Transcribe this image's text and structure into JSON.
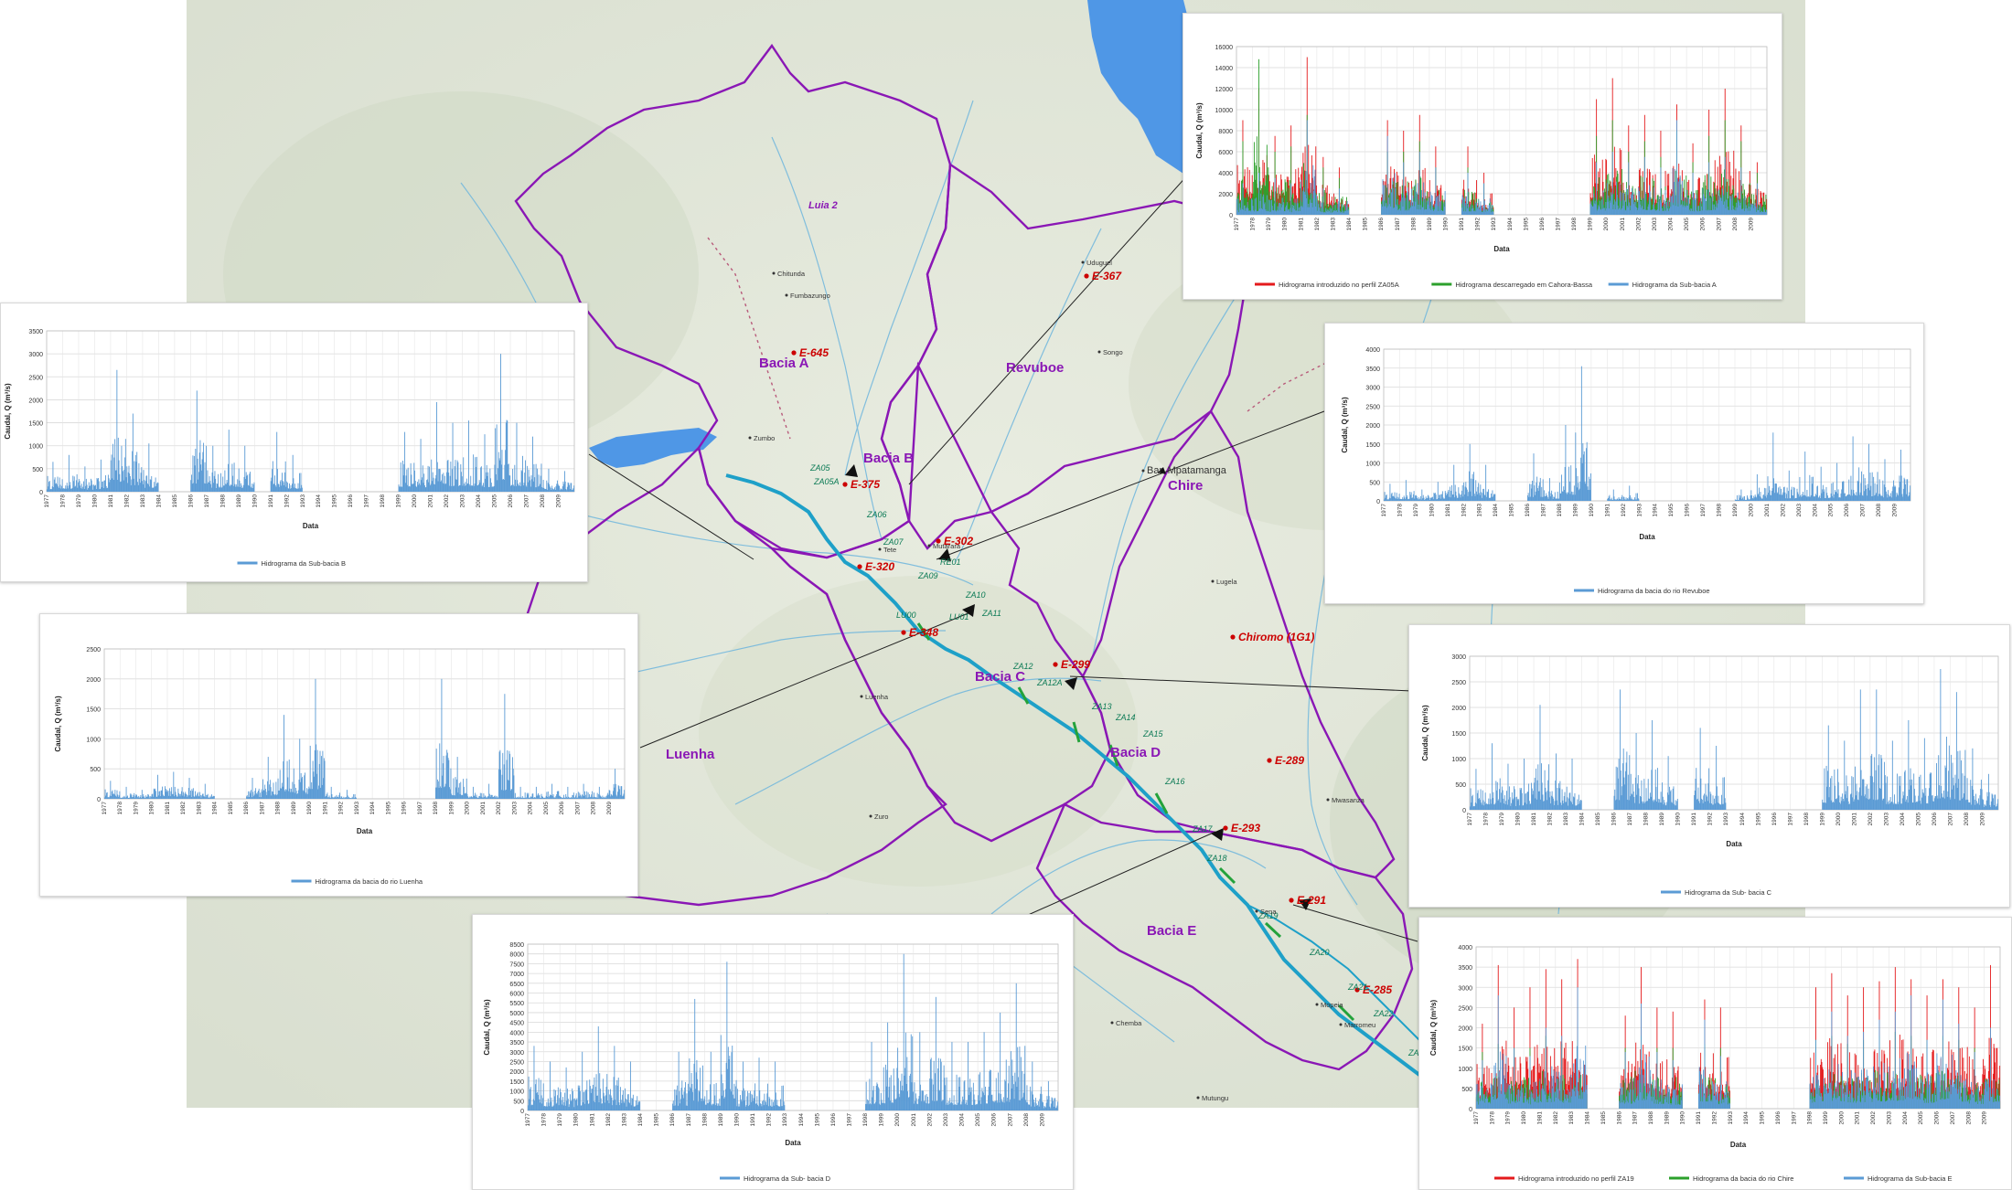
{
  "map": {
    "basin_labels": [
      "Bacia A",
      "Bacia B",
      "Bacia C",
      "Bacia D",
      "Bacia E",
      "Revuboe",
      "Luenha",
      "Chire"
    ],
    "station_labels": [
      "E-645",
      "E-367",
      "E-375",
      "E-302",
      "E-320",
      "E-348",
      "E-299",
      "E-289",
      "E-293",
      "E-291",
      "E-285",
      "Chiromo (1G1)"
    ],
    "reach_labels": [
      "ZA05",
      "ZA05A",
      "ZA06",
      "ZA07",
      "RE01",
      "ZA09",
      "ZA10",
      "ZA11",
      "LU00",
      "LU01",
      "ZA12",
      "ZA12A",
      "ZA13",
      "ZA14",
      "ZA15",
      "ZA16",
      "ZA17",
      "ZA18",
      "ZA19",
      "ZA20",
      "ZA21",
      "ZA22",
      "ZA"
    ],
    "place_labels": [
      "Luia 2",
      "Bar. Mpatamanga",
      "Tete",
      "Chitunda",
      "Fumbazungo",
      "Mutarara",
      "Uduguel",
      "Luenha",
      "Zumbo",
      "Sena",
      "Chemba",
      "Mwasanza",
      "Mopeia",
      "Songo",
      "Zuro",
      "Marromeu",
      "Lugela",
      "Mutungu"
    ],
    "colors": {
      "basin_border": "#8a17b5",
      "river": "#2f9fd2",
      "main_river": "#1ea0c8",
      "station": "#cc0000",
      "reach_label": "#0b7a55",
      "lake": "#4f97e6"
    }
  },
  "chart_data": [
    {
      "id": "top-right",
      "type": "area",
      "title": "",
      "xlabel": "Data",
      "ylabel": "Caudal, Q (m³/s)",
      "ylim": [
        0,
        16000
      ],
      "yticks": [
        0,
        2000,
        4000,
        6000,
        8000,
        10000,
        12000,
        14000,
        16000
      ],
      "x": [
        "1977",
        "1978",
        "1979",
        "1980",
        "1981",
        "1982",
        "1983",
        "1984",
        "1985",
        "1986",
        "1987",
        "1988",
        "1989",
        "1990",
        "1991",
        "1992",
        "1993",
        "1994",
        "1995",
        "1996",
        "1997",
        "1998",
        "1999",
        "2000",
        "2001",
        "2002",
        "2003",
        "2004",
        "2005",
        "2006",
        "2007",
        "2008",
        "2009"
      ],
      "series": [
        {
          "name": "Hidrograma introduzido no perfil ZA05A",
          "color": "#e41a1c",
          "values": [
            9000,
            12000,
            7500,
            8500,
            15000,
            5500,
            4500,
            null,
            null,
            9000,
            8000,
            9500,
            6500,
            null,
            6500,
            4000,
            null,
            null,
            null,
            null,
            null,
            null,
            11000,
            13000,
            8500,
            9500,
            8000,
            10500,
            6800,
            10000,
            12000,
            8500,
            5000
          ]
        },
        {
          "name": "Hidrograma descarregado em Cahora-Bassa",
          "color": "#2ca02c",
          "values": [
            7000,
            14800,
            6000,
            6500,
            9500,
            4500,
            3500,
            null,
            null,
            6000,
            6000,
            7000,
            4500,
            null,
            4500,
            3000,
            null,
            null,
            null,
            null,
            null,
            null,
            7500,
            9000,
            6000,
            7000,
            5500,
            8000,
            5000,
            7500,
            9000,
            7000,
            4000
          ]
        },
        {
          "name": "Hidrograma da Sub-bacia A",
          "color": "#5b9bd5",
          "values": [
            3000,
            4000,
            3500,
            3000,
            9000,
            2500,
            2500,
            null,
            null,
            7500,
            5000,
            6000,
            4500,
            null,
            4000,
            3000,
            null,
            null,
            null,
            null,
            null,
            null,
            5000,
            6000,
            5000,
            5500,
            4500,
            9000,
            4000,
            5000,
            5500,
            4500,
            3000
          ]
        }
      ]
    },
    {
      "id": "left-top",
      "type": "area",
      "title": "",
      "xlabel": "Data",
      "ylabel": "Caudal, Q (m³/s)",
      "ylim": [
        0,
        3500
      ],
      "yticks": [
        0,
        500,
        1000,
        1500,
        2000,
        2500,
        3000,
        3500
      ],
      "x": [
        "1977",
        "1978",
        "1979",
        "1980",
        "1981",
        "1982",
        "1983",
        "1984",
        "1985",
        "1986",
        "1987",
        "1988",
        "1989",
        "1990",
        "1991",
        "1992",
        "1993",
        "1994",
        "1995",
        "1996",
        "1997",
        "1998",
        "1999",
        "2000",
        "2001",
        "2002",
        "2003",
        "2004",
        "2005",
        "2006",
        "2007",
        "2008",
        "2009"
      ],
      "series": [
        {
          "name": "Hidrograma da Sub-bacia B",
          "color": "#5b9bd5",
          "values": [
            650,
            800,
            550,
            700,
            2650,
            1700,
            1050,
            null,
            null,
            2200,
            1000,
            1350,
            1000,
            null,
            1300,
            800,
            null,
            null,
            null,
            null,
            null,
            null,
            1300,
            1150,
            1950,
            1500,
            1550,
            1250,
            3000,
            1500,
            1200,
            500,
            450
          ]
        }
      ]
    },
    {
      "id": "right-top",
      "type": "area",
      "title": "",
      "xlabel": "Data",
      "ylabel": "Caudal, Q (m³/s)",
      "ylim": [
        0,
        4000
      ],
      "yticks": [
        0,
        500,
        1000,
        1500,
        2000,
        2500,
        3000,
        3500,
        4000
      ],
      "x": [
        "1977",
        "1978",
        "1979",
        "1980",
        "1981",
        "1982",
        "1983",
        "1984",
        "1985",
        "1986",
        "1987",
        "1988",
        "1989",
        "1990",
        "1991",
        "1992",
        "1993",
        "1994",
        "1995",
        "1996",
        "1997",
        "1998",
        "1999",
        "2000",
        "2001",
        "2002",
        "2003",
        "2004",
        "2005",
        "2006",
        "2007",
        "2008",
        "2009"
      ],
      "series": [
        {
          "name": "Hidrograma da bacia do rio Revuboe",
          "color": "#5b9bd5",
          "values": [
            450,
            550,
            300,
            500,
            950,
            1500,
            950,
            null,
            null,
            1250,
            600,
            2000,
            3550,
            null,
            300,
            400,
            null,
            null,
            null,
            null,
            null,
            null,
            300,
            700,
            1800,
            800,
            1300,
            900,
            1000,
            1700,
            1500,
            1100,
            1350
          ]
        }
      ]
    },
    {
      "id": "left-mid",
      "type": "area",
      "title": "",
      "xlabel": "Data",
      "ylabel": "Caudal, Q (m³/s)",
      "ylim": [
        0,
        2500
      ],
      "yticks": [
        0,
        500,
        1000,
        1500,
        2000,
        2500
      ],
      "x": [
        "1977",
        "1978",
        "1979",
        "1980",
        "1981",
        "1982",
        "1983",
        "1984",
        "1985",
        "1986",
        "1987",
        "1988",
        "1989",
        "1990",
        "1991",
        "1992",
        "1993",
        "1994",
        "1995",
        "1996",
        "1997",
        "1998",
        "1999",
        "2000",
        "2001",
        "2002",
        "2003",
        "2004",
        "2005",
        "2006",
        "2007",
        "2008",
        "2009"
      ],
      "series": [
        {
          "name": "Hidrograma da bacia do rio Luenha",
          "color": "#5b9bd5",
          "values": [
            300,
            200,
            150,
            400,
            450,
            350,
            250,
            null,
            null,
            350,
            700,
            1400,
            1000,
            2000,
            200,
            150,
            null,
            null,
            null,
            null,
            null,
            2000,
            700,
            200,
            250,
            1750,
            200,
            200,
            250,
            200,
            250,
            200,
            500
          ]
        }
      ]
    },
    {
      "id": "right-mid",
      "type": "area",
      "title": "",
      "xlabel": "Data",
      "ylabel": "Caudal, Q (m³/s)",
      "ylim": [
        0,
        3000
      ],
      "yticks": [
        0,
        500,
        1000,
        1500,
        2000,
        2500,
        3000
      ],
      "x": [
        "1977",
        "1978",
        "1979",
        "1980",
        "1981",
        "1982",
        "1983",
        "1984",
        "1985",
        "1986",
        "1987",
        "1988",
        "1989",
        "1990",
        "1991",
        "1992",
        "1993",
        "1994",
        "1995",
        "1996",
        "1997",
        "1998",
        "1999",
        "2000",
        "2001",
        "2002",
        "2003",
        "2004",
        "2005",
        "2006",
        "2007",
        "2008",
        "2009"
      ],
      "series": [
        {
          "name": "Hidrograma da Sub- bacia C",
          "color": "#5b9bd5",
          "values": [
            800,
            1300,
            900,
            1000,
            2050,
            1100,
            1000,
            null,
            null,
            2350,
            1500,
            1750,
            1050,
            null,
            1600,
            1250,
            null,
            null,
            null,
            null,
            null,
            null,
            1650,
            1350,
            2350,
            2350,
            1350,
            1750,
            1400,
            2750,
            2300,
            1200,
            700
          ]
        }
      ]
    },
    {
      "id": "bottom-center",
      "type": "area",
      "title": "",
      "xlabel": "Data",
      "ylabel": "Caudal, Q (m³/s)",
      "ylim": [
        0,
        8500
      ],
      "yticks": [
        0,
        500,
        1000,
        1500,
        2000,
        2500,
        3000,
        3500,
        4000,
        4500,
        5000,
        5500,
        6000,
        6500,
        7000,
        7500,
        8000,
        8500
      ],
      "x": [
        "1977",
        "1978",
        "1979",
        "1980",
        "1981",
        "1982",
        "1983",
        "1984",
        "1985",
        "1986",
        "1987",
        "1988",
        "1989",
        "1990",
        "1991",
        "1992",
        "1993",
        "1994",
        "1995",
        "1996",
        "1997",
        "1998",
        "1999",
        "2000",
        "2001",
        "2002",
        "2003",
        "2004",
        "2005",
        "2006",
        "2007",
        "2008",
        "2009"
      ],
      "series": [
        {
          "name": "Hidrograma da Sub- bacia D",
          "color": "#5b9bd5",
          "values": [
            3300,
            2500,
            2200,
            3000,
            4300,
            3300,
            2500,
            null,
            null,
            3000,
            5700,
            3000,
            7600,
            2500,
            2700,
            2500,
            null,
            null,
            null,
            null,
            null,
            3500,
            4500,
            8000,
            4000,
            5800,
            3500,
            3500,
            4000,
            5000,
            6500,
            2500,
            1500
          ]
        }
      ]
    },
    {
      "id": "bottom-right",
      "type": "area",
      "title": "",
      "xlabel": "Data",
      "ylabel": "Caudal, Q (m³/s)",
      "ylim": [
        0,
        4000
      ],
      "yticks": [
        0,
        500,
        1000,
        1500,
        2000,
        2500,
        3000,
        3500,
        4000
      ],
      "x": [
        "1977",
        "1978",
        "1979",
        "1980",
        "1981",
        "1982",
        "1983",
        "1984",
        "1985",
        "1986",
        "1987",
        "1988",
        "1989",
        "1990",
        "1991",
        "1992",
        "1993",
        "1994",
        "1995",
        "1996",
        "1997",
        "1998",
        "1999",
        "2000",
        "2001",
        "2002",
        "2003",
        "2004",
        "2005",
        "2006",
        "2007",
        "2008",
        "2009"
      ],
      "series": [
        {
          "name": "Hidrograma introduzido no perfil ZA19",
          "color": "#e41a1c",
          "values": [
            2100,
            3550,
            2500,
            3000,
            3450,
            3200,
            3700,
            null,
            null,
            2300,
            3500,
            2500,
            2400,
            null,
            2700,
            2500,
            null,
            null,
            null,
            null,
            null,
            3000,
            3350,
            2800,
            3000,
            3150,
            3500,
            3200,
            2800,
            3200,
            3000,
            2500,
            3550
          ]
        },
        {
          "name": "Hidrograma da bacia do rio Chire",
          "color": "#2ca02c",
          "values": [
            1400,
            1600,
            1500,
            1500,
            1800,
            1600,
            1700,
            null,
            null,
            1500,
            1800,
            1500,
            1500,
            null,
            1600,
            1500,
            null,
            null,
            null,
            null,
            null,
            1700,
            1800,
            1600,
            1700,
            1800,
            1900,
            1800,
            1700,
            1800,
            1700,
            1500,
            1500
          ]
        },
        {
          "name": "Hidrograma da Sub-bacia E",
          "color": "#5b9bd5",
          "values": [
            1200,
            2800,
            1500,
            1300,
            2000,
            1800,
            3000,
            null,
            null,
            1400,
            2600,
            1400,
            1200,
            null,
            2200,
            1300,
            null,
            null,
            null,
            null,
            null,
            1700,
            2400,
            1800,
            1900,
            2200,
            2400,
            2800,
            1700,
            2700,
            2100,
            1400,
            2000
          ]
        }
      ]
    }
  ]
}
